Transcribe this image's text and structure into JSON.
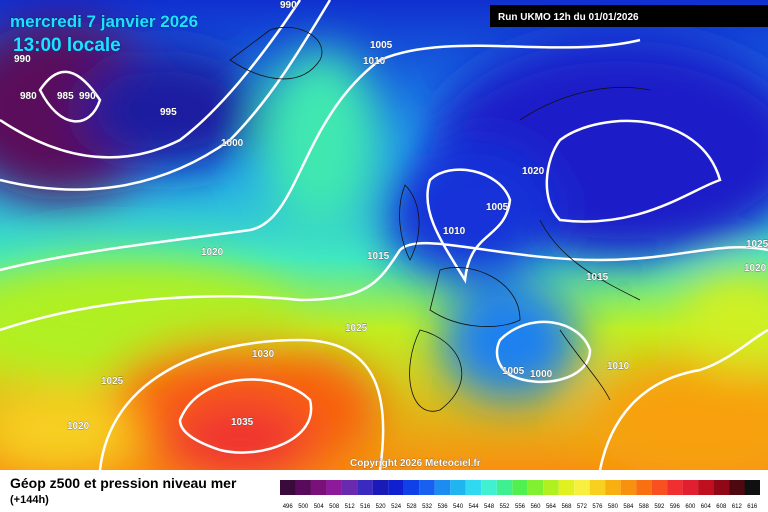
{
  "header": {
    "date": "mercredi 7 janvier 2026",
    "time": "13:00 locale",
    "run": "Run UKMO 12h du 01/01/2026"
  },
  "isobar_labels": [
    990,
    990,
    980,
    985,
    990,
    1005,
    1010,
    995,
    1000,
    1020,
    1005,
    1010,
    1020,
    1015,
    1025,
    1020,
    1015,
    1025,
    1030,
    1010,
    1005,
    1000,
    1025,
    1035,
    1020
  ],
  "copyright": "Copyright 2026 Meteociel.fr",
  "footer": {
    "title": "Géop z500 et pression niveau mer",
    "subtitle": "(+144h)"
  },
  "colorbar": {
    "values": [
      496,
      500,
      504,
      508,
      512,
      516,
      520,
      524,
      528,
      532,
      536,
      540,
      544,
      548,
      552,
      556,
      560,
      564,
      568,
      572,
      576,
      580,
      584,
      588,
      592,
      596,
      600,
      604,
      608,
      612,
      616
    ],
    "colors": [
      "#3a0a3a",
      "#5a0a5a",
      "#7a107a",
      "#8c1a9a",
      "#6a2ab0",
      "#3a2ac0",
      "#1a1ab8",
      "#1020d0",
      "#1040e8",
      "#1860f0",
      "#1c8cf0",
      "#20b4f0",
      "#30d8f0",
      "#40f0d0",
      "#40f090",
      "#50f050",
      "#80f030",
      "#b0f020",
      "#e0f020",
      "#f8f040",
      "#f8d020",
      "#f8b010",
      "#f89010",
      "#f87010",
      "#f85020",
      "#f03030",
      "#e02030",
      "#c01020",
      "#900818",
      "#500810",
      "#101010"
    ]
  }
}
